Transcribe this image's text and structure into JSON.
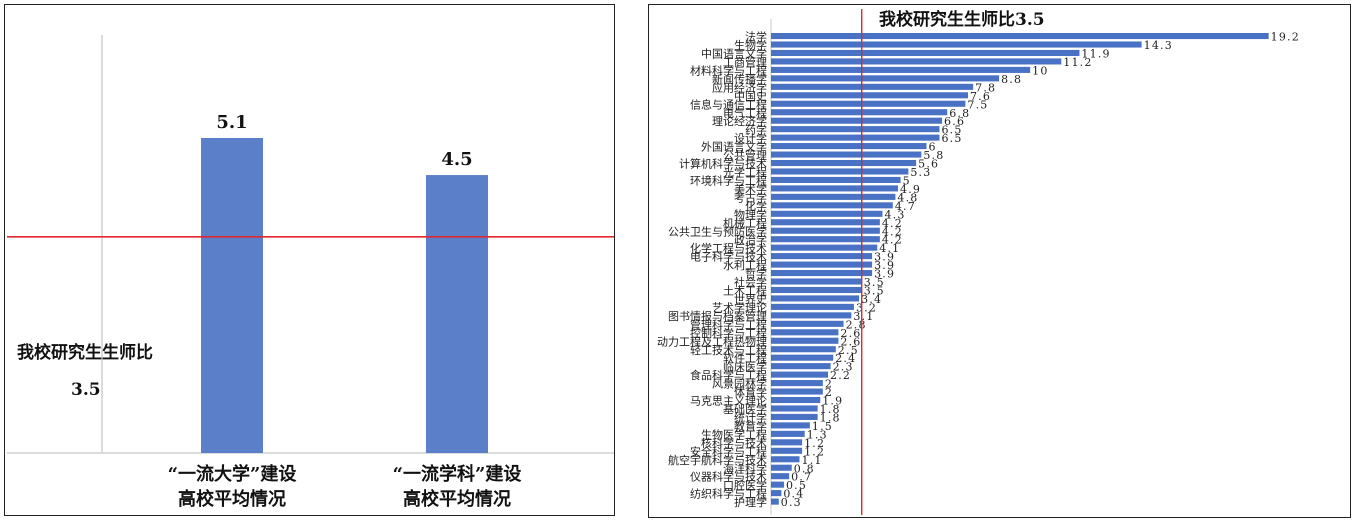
{
  "chart_data": [
    {
      "type": "bar",
      "categories": [
        "“一流大学”建设|高校平均情况",
        "“一流学科”建设|高校平均情况"
      ],
      "values": [
        5.1,
        4.5
      ],
      "data_labels": [
        "5.1",
        "4.5"
      ],
      "reference_line": {
        "value": 3.5,
        "label": "我校研究生生师比",
        "value_label": "3.5",
        "color": "#e0282e"
      },
      "bar_color": "#5b7fc9",
      "ylim": [
        0,
        6.8
      ],
      "grid": false
    },
    {
      "type": "bar",
      "orientation": "horizontal",
      "title": "我校研究生生师比3.5",
      "bar_color": "#4a72c4",
      "reference_line": {
        "value": 3.5,
        "color": "#e0282e"
      },
      "xlim": [
        0,
        19.6
      ],
      "values": [
        19.2,
        14.3,
        11.9,
        11.2,
        10,
        8.8,
        7.8,
        7.6,
        7.5,
        6.8,
        6.6,
        6.5,
        6.5,
        6,
        5.8,
        5.6,
        5.3,
        5,
        4.9,
        4.8,
        4.7,
        4.3,
        4.2,
        4.2,
        4.2,
        4.1,
        3.9,
        3.9,
        3.9,
        3.5,
        3.5,
        3.4,
        3.2,
        3.1,
        2.8,
        2.6,
        2.6,
        2.5,
        2.4,
        2.3,
        2.2,
        2,
        2,
        1.9,
        1.8,
        1.8,
        1.5,
        1.3,
        1.2,
        1.2,
        1.1,
        0.8,
        0.7,
        0.5,
        0.4,
        0.3
      ],
      "labels": [
        "法学",
        "生物学",
        "中国语言文学",
        "工商管理",
        "材料科学与工程",
        "新闻传播学",
        "应用经济学",
        "中国史",
        "信息与通信工程",
        "电气工程",
        "理论经济学",
        "药学",
        "设计学",
        "外国语言文学",
        "公共管理",
        "计算机科学与技术",
        "光学工程",
        "环境科学与工程",
        "美术学",
        "考古学",
        "化学",
        "物理学",
        "机械工程",
        "公共卫生与预防医学",
        "政治学",
        "化学工程与技术",
        "电子科学与技术",
        "水利工程",
        "哲学",
        "社会学",
        "土木工程",
        "世界史",
        "艺术学理论",
        "图书情报与档案管理",
        "管理科学与工程",
        "控制科学与工程",
        "动力工程及工程热物理",
        "轻工技术与工程",
        "软件工程",
        "临床医学",
        "食品科学与工程",
        "风景园林学",
        "体育学",
        "马克思主义理论",
        "基础医学",
        "统计学",
        "教育学",
        "生物医学工程",
        "核科学与技术",
        "安全科学与工程",
        "航空宇航科学与技术",
        "海洋科学",
        "仪器科学与技术",
        "口腔医学",
        "纺织科学与工程",
        "护理学"
      ],
      "label_visibility_note": "",
      "shown_labels": [
        {
          "index": 0,
          "text": "法学"
        }
      ]
    }
  ]
}
